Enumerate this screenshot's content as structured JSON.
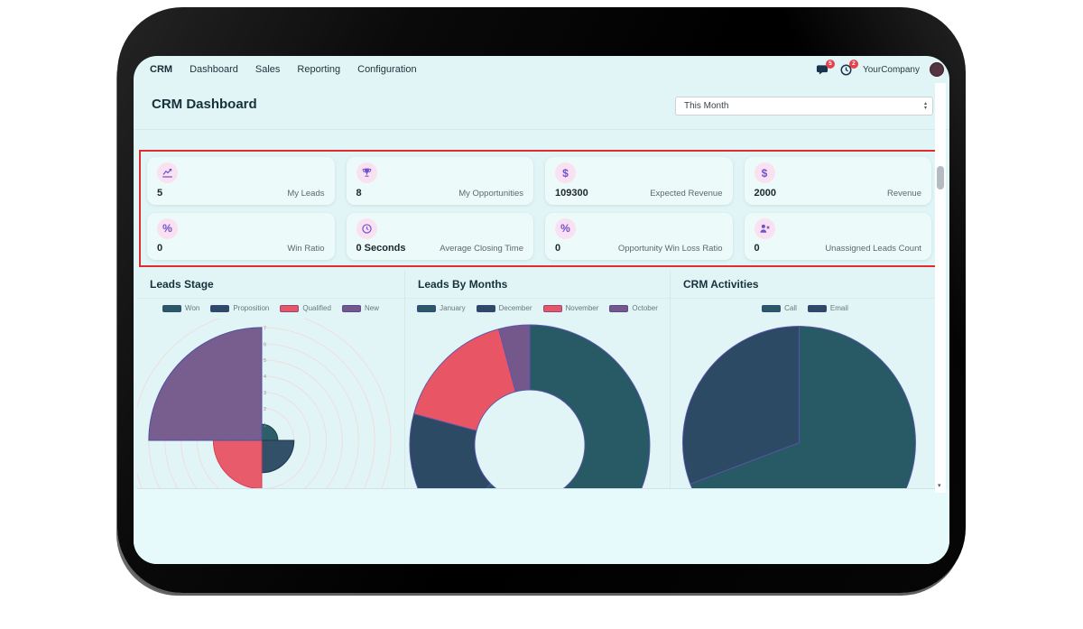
{
  "navbar": {
    "app_name": "CRM",
    "menu_items": [
      "Dashboard",
      "Sales",
      "Reporting",
      "Configuration"
    ],
    "messages_badge": "5",
    "activities_badge": "2",
    "company_name": "YourCompany"
  },
  "header": {
    "title": "CRM Dashboard",
    "period_selected": "This Month"
  },
  "kpis": [
    {
      "icon": "line-chart-icon",
      "value": "5",
      "label": "My Leads"
    },
    {
      "icon": "trophy-icon",
      "value": "8",
      "label": "My Opportunities"
    },
    {
      "icon": "dollar-icon",
      "icon_glyph": "$",
      "value": "109300",
      "label": "Expected Revenue"
    },
    {
      "icon": "dollar-icon",
      "icon_glyph": "$",
      "value": "2000",
      "label": "Revenue"
    },
    {
      "icon": "percent-icon",
      "icon_glyph": "%",
      "value": "0",
      "label": "Win Ratio"
    },
    {
      "icon": "clock-icon",
      "value": "0 Seconds",
      "label": "Average Closing Time"
    },
    {
      "icon": "percent-icon",
      "icon_glyph": "%",
      "value": "0",
      "label": "Opportunity Win Loss Ratio"
    },
    {
      "icon": "user-x-icon",
      "value": "0",
      "label": "Unassigned Leads Count"
    }
  ],
  "chart_data": [
    {
      "type": "polarArea",
      "title": "Leads Stage",
      "categories": [
        "Won",
        "Proposition",
        "Qualified",
        "New"
      ],
      "values": [
        1,
        2,
        3,
        7
      ],
      "colors": [
        "#275a64",
        "#2c4a63",
        "#e85666",
        "#75588b"
      ],
      "border_colors": [
        "#16404c",
        "#1d3650",
        "#d43e57",
        "#5150a5"
      ],
      "rlim": [
        0,
        8
      ],
      "grid": true,
      "legend_position": "top"
    },
    {
      "type": "doughnut",
      "title": "Leads By Months",
      "categories": [
        "January",
        "December",
        "November",
        "October"
      ],
      "values": [
        15,
        4,
        4,
        1
      ],
      "colors": [
        "#275a64",
        "#2c4a63",
        "#e85666",
        "#75588b"
      ],
      "legend_position": "top"
    },
    {
      "type": "pie",
      "title": "CRM Activities",
      "categories": [
        "Call",
        "Email"
      ],
      "values": [
        9,
        4
      ],
      "colors": [
        "#275a64",
        "#2c4a63"
      ],
      "legend_position": "top"
    }
  ],
  "colors": {
    "screen_bg": "#e1f5f6",
    "card_bg": "#ecfafa",
    "kpi_icon_bg": "#fae1f2",
    "kpi_icon": "#6f53cb",
    "highlight_border": "#dd2f2e",
    "badge": "#e7414e",
    "grid_ring": "#f1dddd"
  }
}
